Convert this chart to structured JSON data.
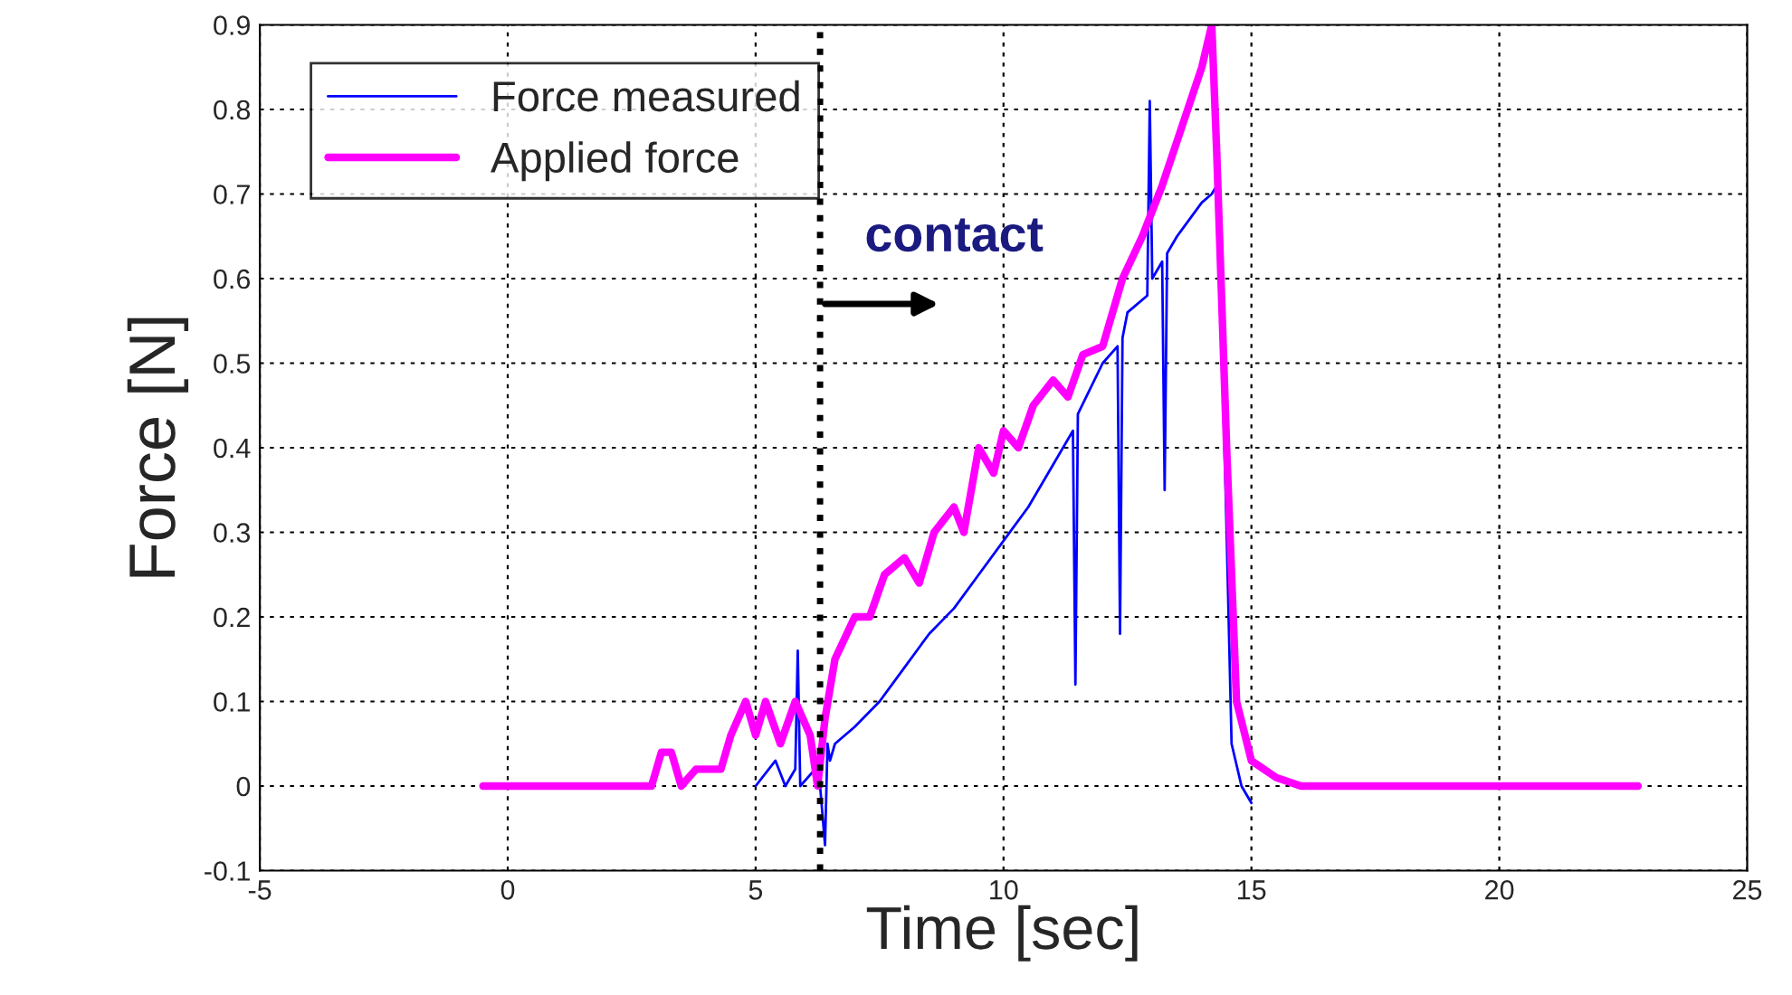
{
  "chart_data": {
    "type": "line",
    "xlabel": "Time [sec]",
    "ylabel": "Force [N]",
    "xlim": [
      -5,
      25
    ],
    "xticks": [
      -5,
      0,
      5,
      10,
      15,
      20,
      25
    ],
    "ylim": [
      -0.1,
      0.9
    ],
    "yticks": [
      -0.1,
      0,
      0.1,
      0.2,
      0.3,
      0.4,
      0.5,
      0.6,
      0.7,
      0.8,
      0.9
    ],
    "grid": true,
    "legend": "top left",
    "series": [
      {
        "name": "Force measured",
        "color": "#0000ff",
        "x": [
          5.0,
          5.4,
          5.6,
          5.8,
          5.85,
          5.9,
          6.2,
          6.3,
          6.4,
          6.45,
          6.5,
          6.6,
          7.0,
          7.5,
          8.0,
          8.5,
          9.0,
          9.5,
          10.0,
          10.5,
          11.0,
          11.4,
          11.45,
          11.5,
          12.0,
          12.3,
          12.35,
          12.4,
          12.5,
          12.9,
          12.95,
          13.0,
          13.2,
          13.25,
          13.3,
          13.5,
          14.0,
          14.2,
          14.3,
          14.35,
          14.5,
          14.6,
          14.8,
          15.0
        ],
        "values": [
          0.0,
          0.03,
          0.0,
          0.02,
          0.16,
          0.0,
          0.02,
          0.0,
          -0.07,
          0.05,
          0.03,
          0.05,
          0.07,
          0.1,
          0.14,
          0.18,
          0.21,
          0.25,
          0.29,
          0.33,
          0.38,
          0.42,
          0.12,
          0.44,
          0.5,
          0.52,
          0.18,
          0.53,
          0.56,
          0.58,
          0.81,
          0.6,
          0.62,
          0.35,
          0.63,
          0.65,
          0.69,
          0.7,
          0.71,
          0.65,
          0.3,
          0.05,
          0.0,
          -0.02
        ]
      },
      {
        "name": "Applied force",
        "color": "#ff00ff",
        "x": [
          -0.5,
          2.9,
          3.1,
          3.3,
          3.5,
          3.8,
          4.3,
          4.5,
          4.8,
          5.0,
          5.2,
          5.5,
          5.8,
          6.1,
          6.25,
          6.4,
          6.6,
          7.0,
          7.3,
          7.6,
          8.0,
          8.3,
          8.6,
          9.0,
          9.2,
          9.5,
          9.8,
          10.0,
          10.3,
          10.6,
          11.0,
          11.3,
          11.6,
          12.0,
          12.4,
          12.8,
          13.2,
          13.6,
          14.0,
          14.2,
          14.3,
          14.5,
          14.7,
          15.0,
          15.5,
          16.0,
          22.8
        ],
        "values": [
          0.0,
          0.0,
          0.04,
          0.04,
          0.0,
          0.02,
          0.02,
          0.06,
          0.1,
          0.06,
          0.1,
          0.05,
          0.1,
          0.06,
          0.0,
          0.08,
          0.15,
          0.2,
          0.2,
          0.25,
          0.27,
          0.24,
          0.3,
          0.33,
          0.3,
          0.4,
          0.37,
          0.42,
          0.4,
          0.45,
          0.48,
          0.46,
          0.51,
          0.52,
          0.6,
          0.65,
          0.71,
          0.78,
          0.85,
          0.9,
          0.75,
          0.4,
          0.1,
          0.03,
          0.01,
          0.0,
          0.0
        ]
      }
    ],
    "ref_lines": [
      {
        "axis": "x",
        "value": 6.3,
        "color": "#000000",
        "line_style": "dotted"
      }
    ],
    "annotations": [
      {
        "text": "contact",
        "x": 6.3,
        "y": 0.57
      }
    ]
  }
}
